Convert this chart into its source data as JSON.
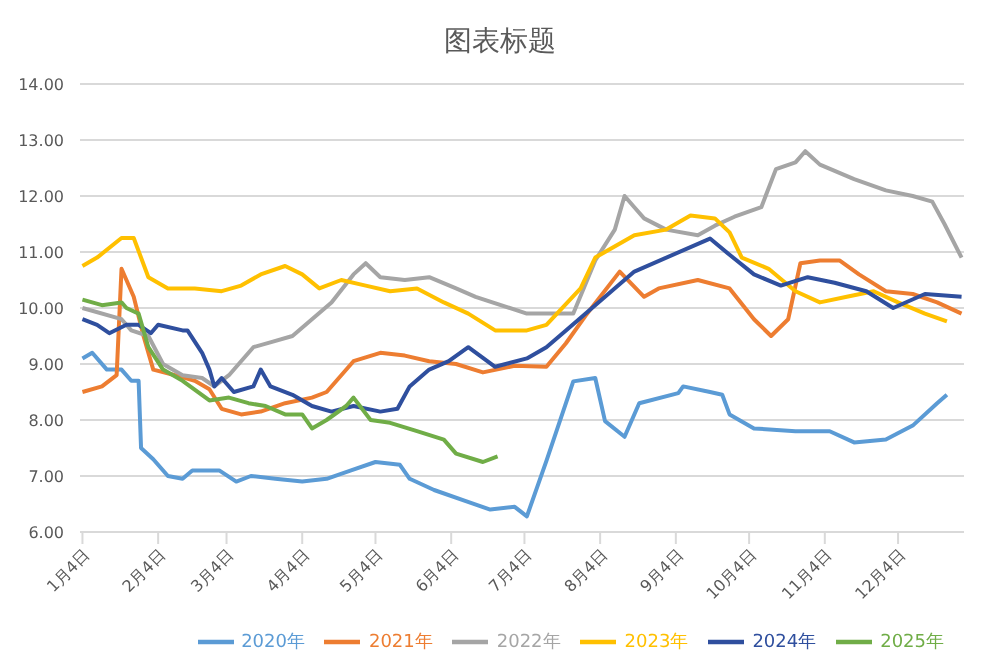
{
  "chart_data": {
    "type": "line",
    "title": "图表标题",
    "marker": "none",
    "grid": "y",
    "legend": "bottom",
    "xlim": [
      "--01-03",
      "--12-31"
    ],
    "xticks": [
      {
        "value": "--01-04",
        "label": "1月4日"
      },
      {
        "value": "--02-04",
        "label": "2月4日"
      },
      {
        "value": "--03-04",
        "label": "3月4日"
      },
      {
        "value": "--04-04",
        "label": "4月4日"
      },
      {
        "value": "--05-04",
        "label": "5月4日"
      },
      {
        "value": "--06-04",
        "label": "6月4日"
      },
      {
        "value": "--07-04",
        "label": "7月4日"
      },
      {
        "value": "--08-04",
        "label": "8月4日"
      },
      {
        "value": "--09-04",
        "label": "9月4日"
      },
      {
        "value": "--10-04",
        "label": "10月4日"
      },
      {
        "value": "--11-04",
        "label": "11月4日"
      },
      {
        "value": "--12-04",
        "label": "12月4日"
      }
    ],
    "ylim": [
      6,
      14
    ],
    "yticks": [
      {
        "value": 6,
        "label": "6.00"
      },
      {
        "value": 7,
        "label": "7.00"
      },
      {
        "value": 8,
        "label": "8.00"
      },
      {
        "value": 9,
        "label": "9.00"
      },
      {
        "value": 10,
        "label": "10.00"
      },
      {
        "value": 11,
        "label": "11.00"
      },
      {
        "value": 12,
        "label": "12.00"
      },
      {
        "value": 13,
        "label": "13.00"
      },
      {
        "value": 14,
        "label": "14.00"
      }
    ],
    "series": [
      {
        "name": "2020年",
        "color": "#5b9bd5",
        "x": [
          "--01-04",
          "--01-08",
          "--01-14",
          "--01-20",
          "--01-24",
          "--01-27",
          "--01-28",
          "--02-02",
          "--02-08",
          "--02-14",
          "--02-18",
          "--03-01",
          "--03-08",
          "--03-14",
          "--03-24",
          "--04-04",
          "--04-14",
          "--04-24",
          "--05-04",
          "--05-14",
          "--05-18",
          "--05-28",
          "--06-10",
          "--06-20",
          "--06-30",
          "--07-05",
          "--07-13",
          "--07-24",
          "--08-02",
          "--08-06",
          "--08-14",
          "--08-20",
          "--09-05",
          "--09-07",
          "--09-18",
          "--09-23",
          "--09-26",
          "--10-06",
          "--10-23",
          "--11-06",
          "--11-16",
          "--11-29",
          "--12-10",
          "--12-20",
          "--12-24"
        ],
        "values": [
          9.1,
          9.2,
          8.9,
          8.9,
          8.7,
          8.7,
          7.5,
          7.3,
          7.0,
          6.95,
          7.1,
          7.1,
          6.9,
          7.0,
          6.95,
          6.9,
          6.95,
          7.1,
          7.25,
          7.2,
          6.95,
          6.75,
          6.55,
          6.4,
          6.45,
          6.28,
          7.27,
          8.69,
          8.75,
          7.98,
          7.7,
          8.3,
          8.48,
          8.6,
          8.5,
          8.45,
          8.1,
          7.85,
          7.8,
          7.8,
          7.6,
          7.65,
          7.9,
          8.3,
          8.45
        ]
      },
      {
        "name": "2021年",
        "color": "#ed7d31",
        "x": [
          "--01-04",
          "--01-12",
          "--01-18",
          "--01-20",
          "--01-25",
          "--01-29",
          "--02-02",
          "--02-11",
          "--02-19",
          "--02-25",
          "--03-02",
          "--03-10",
          "--03-18",
          "--03-28",
          "--04-08",
          "--04-14",
          "--04-20",
          "--04-25",
          "--05-06",
          "--05-16",
          "--05-26",
          "--06-06",
          "--06-17",
          "--06-30",
          "--07-13",
          "--07-21",
          "--07-29",
          "--08-12",
          "--08-22",
          "--08-28",
          "--09-13",
          "--09-26",
          "--10-06",
          "--10-13",
          "--10-20",
          "--10-25",
          "--11-02",
          "--11-10",
          "--11-18",
          "--11-29",
          "--12-10",
          "--12-20",
          "--12-30"
        ],
        "values": [
          8.5,
          8.6,
          8.8,
          10.7,
          10.2,
          9.5,
          8.9,
          8.8,
          8.7,
          8.55,
          8.2,
          8.1,
          8.15,
          8.3,
          8.4,
          8.5,
          8.8,
          9.05,
          9.2,
          9.15,
          9.05,
          9.0,
          8.85,
          8.97,
          8.95,
          9.37,
          9.86,
          10.65,
          10.2,
          10.35,
          10.5,
          10.35,
          9.8,
          9.5,
          9.8,
          10.8,
          10.85,
          10.85,
          10.6,
          10.3,
          10.25,
          10.1,
          9.9
        ]
      },
      {
        "name": "2022年",
        "color": "#a5a5a5",
        "x": [
          "--01-04",
          "--01-20",
          "--01-24",
          "--01-31",
          "--02-06",
          "--02-14",
          "--02-22",
          "--02-27",
          "--03-05",
          "--03-09",
          "--03-15",
          "--03-23",
          "--03-31",
          "--04-08",
          "--04-16",
          "--04-25",
          "--04-30",
          "--05-06",
          "--05-16",
          "--05-26",
          "--06-06",
          "--06-14",
          "--07-05",
          "--07-24",
          "--08-02",
          "--08-10",
          "--08-14",
          "--08-18",
          "--08-22",
          "--08-31",
          "--09-13",
          "--09-20",
          "--09-28",
          "--10-09",
          "--10-15",
          "--10-23",
          "--10-27",
          "--11-02",
          "--11-16",
          "--11-29",
          "--12-10",
          "--12-18",
          "--12-23",
          "--12-30"
        ],
        "values": [
          10.0,
          9.8,
          9.6,
          9.5,
          9.0,
          8.8,
          8.75,
          8.6,
          8.8,
          9.0,
          9.3,
          9.4,
          9.5,
          9.8,
          10.1,
          10.6,
          10.8,
          10.55,
          10.5,
          10.55,
          10.35,
          10.2,
          9.9,
          9.9,
          10.85,
          11.4,
          12.0,
          11.8,
          11.6,
          11.4,
          11.3,
          11.47,
          11.63,
          11.8,
          12.48,
          12.6,
          12.8,
          12.56,
          12.3,
          12.1,
          12.0,
          11.9,
          11.5,
          10.9
        ]
      },
      {
        "name": "2023年",
        "color": "#ffc000",
        "x": [
          "--01-04",
          "--01-10",
          "--01-20",
          "--01-25",
          "--01-31",
          "--02-08",
          "--02-19",
          "--03-02",
          "--03-10",
          "--03-18",
          "--03-28",
          "--04-04",
          "--04-11",
          "--04-20",
          "--04-30",
          "--05-10",
          "--05-21",
          "--06-01",
          "--06-11",
          "--06-22",
          "--07-05",
          "--07-13",
          "--07-27",
          "--08-02",
          "--08-18",
          "--08-31",
          "--09-10",
          "--09-20",
          "--09-26",
          "--10-01",
          "--10-12",
          "--10-23",
          "--11-02",
          "--11-13",
          "--11-24",
          "--12-04",
          "--12-15",
          "--12-24"
        ],
        "values": [
          10.75,
          10.9,
          11.25,
          11.25,
          10.55,
          10.35,
          10.35,
          10.3,
          10.4,
          10.6,
          10.75,
          10.6,
          10.35,
          10.5,
          10.4,
          10.3,
          10.35,
          10.1,
          9.9,
          9.6,
          9.6,
          9.7,
          10.35,
          10.9,
          11.3,
          11.4,
          11.65,
          11.6,
          11.35,
          10.9,
          10.7,
          10.3,
          10.1,
          10.2,
          10.3,
          10.1,
          9.9,
          9.76
        ]
      },
      {
        "name": "2024年",
        "color": "#2f4f9e",
        "x": [
          "--01-04",
          "--01-10",
          "--01-15",
          "--01-22",
          "--01-27",
          "--02-01",
          "--02-04",
          "--02-14",
          "--02-16",
          "--02-22",
          "--02-25",
          "--02-27",
          "--03-02",
          "--03-07",
          "--03-15",
          "--03-18",
          "--03-22",
          "--03-31",
          "--04-08",
          "--04-16",
          "--04-25",
          "--05-06",
          "--05-13",
          "--05-18",
          "--05-26",
          "--06-03",
          "--06-11",
          "--06-22",
          "--07-05",
          "--07-13",
          "--07-21",
          "--08-18",
          "--09-18",
          "--09-26",
          "--10-06",
          "--10-17",
          "--10-28",
          "--11-08",
          "--11-21",
          "--12-02",
          "--12-15",
          "--12-30"
        ],
        "values": [
          9.8,
          9.7,
          9.55,
          9.7,
          9.7,
          9.55,
          9.7,
          9.6,
          9.6,
          9.2,
          8.9,
          8.6,
          8.75,
          8.5,
          8.6,
          8.9,
          8.6,
          8.45,
          8.25,
          8.15,
          8.25,
          8.15,
          8.2,
          8.6,
          8.9,
          9.05,
          9.3,
          8.95,
          9.1,
          9.3,
          9.6,
          10.65,
          11.24,
          10.95,
          10.6,
          10.4,
          10.55,
          10.45,
          10.3,
          10.0,
          10.25,
          10.2
        ]
      },
      {
        "name": "2025年",
        "color": "#70ad47",
        "x": [
          "--01-04",
          "--01-12",
          "--01-20",
          "--01-22",
          "--01-27",
          "--01-31",
          "--02-06",
          "--02-14",
          "--02-25",
          "--03-05",
          "--03-13",
          "--03-20",
          "--03-28",
          "--04-04",
          "--04-08",
          "--04-14",
          "--04-22",
          "--04-25",
          "--05-02",
          "--05-10",
          "--05-21",
          "--06-01",
          "--06-06",
          "--06-17",
          "--06-23"
        ],
        "values": [
          10.15,
          10.05,
          10.1,
          10.0,
          9.9,
          9.3,
          8.9,
          8.7,
          8.35,
          8.4,
          8.3,
          8.25,
          8.1,
          8.1,
          7.85,
          8.0,
          8.25,
          8.4,
          8.0,
          7.95,
          7.8,
          7.65,
          7.4,
          7.25,
          7.35
        ]
      }
    ]
  }
}
